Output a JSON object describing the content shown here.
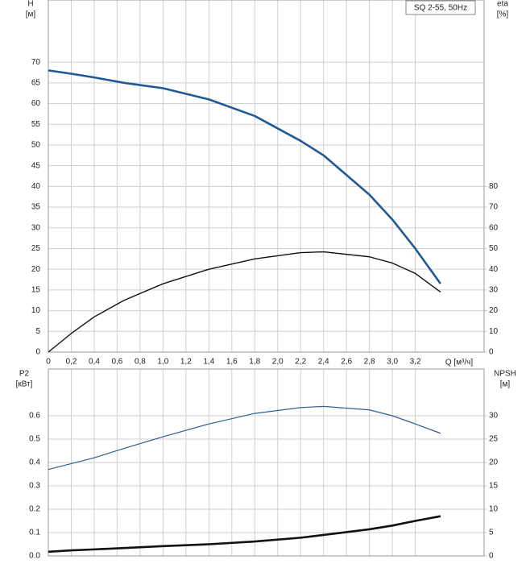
{
  "chart_data": [
    {
      "type": "line",
      "title": "SQ 2-55, 50Hz",
      "xlabel": "Q [м³/ч]",
      "ylabel": [
        "H",
        "[м]"
      ],
      "y2label": [
        "eta",
        "[%]"
      ],
      "x": [
        0,
        0.2,
        0.4,
        0.66,
        1.0,
        1.4,
        1.8,
        2.2,
        2.4,
        2.8,
        3.0,
        3.2,
        3.42
      ],
      "series": [
        {
          "name": "H",
          "color": "#1f5a96",
          "values": [
            68,
            67.2,
            66.3,
            65,
            63.7,
            61,
            57,
            51,
            47.5,
            38,
            32,
            25,
            16.5
          ]
        },
        {
          "name": "eta",
          "color": "#111111",
          "axis": "y2",
          "values": [
            0,
            9,
            17,
            25,
            33,
            40,
            45,
            48,
            48.4,
            46,
            43,
            38,
            29
          ]
        }
      ],
      "xlim": [
        0,
        3.8
      ],
      "xticks": [
        0,
        {
          "value": 0.2,
          "label": "0,2"
        },
        {
          "value": 0.4,
          "label": "0,4"
        },
        {
          "value": 0.6,
          "label": "0,6"
        },
        {
          "value": 0.8,
          "label": "0,8"
        },
        {
          "value": 1.0,
          "label": "1,0"
        },
        {
          "value": 1.2,
          "label": "1,2"
        },
        {
          "value": 1.4,
          "label": "1,4"
        },
        {
          "value": 1.6,
          "label": "1,6"
        },
        {
          "value": 1.8,
          "label": "1,8"
        },
        {
          "value": 2.0,
          "label": "2,0"
        },
        {
          "value": 2.2,
          "label": "2,2"
        },
        {
          "value": 2.4,
          "label": "2,4"
        },
        {
          "value": 2.6,
          "label": "2,6"
        },
        {
          "value": 2.8,
          "label": "2,8"
        },
        {
          "value": 3.0,
          "label": "3,0"
        },
        {
          "value": 3.2,
          "label": "3,2"
        }
      ],
      "ylim": [
        0,
        85
      ],
      "yticks": [
        0,
        5,
        10,
        15,
        20,
        25,
        30,
        35,
        40,
        45,
        50,
        55,
        60,
        65,
        70
      ],
      "y2lim": [
        0,
        170
      ],
      "y2ticks": [
        0,
        10,
        20,
        30,
        40,
        50,
        60,
        70,
        80
      ],
      "grid": true
    },
    {
      "type": "line",
      "ylabel": [
        "P2",
        "[кВт]"
      ],
      "y2label": [
        "NPSH",
        "[м]"
      ],
      "x": [
        0,
        0.2,
        0.4,
        0.66,
        1.0,
        1.4,
        1.8,
        2.2,
        2.4,
        2.8,
        3.0,
        3.2,
        3.42
      ],
      "series": [
        {
          "name": "P2",
          "color": "#2f5f8f",
          "values": [
            0.37,
            0.395,
            0.42,
            0.46,
            0.51,
            0.565,
            0.61,
            0.635,
            0.64,
            0.625,
            0.6,
            0.565,
            0.525
          ]
        },
        {
          "name": "NPSH",
          "color": "#111111",
          "axis": "y2",
          "values": [
            0.9,
            1.2,
            1.4,
            1.7,
            2.1,
            2.5,
            3.1,
            3.9,
            4.5,
            5.7,
            6.5,
            7.5,
            8.5
          ]
        }
      ],
      "xlim": [
        0,
        3.8
      ],
      "ylim": [
        0,
        0.8
      ],
      "yticks": [
        {
          "value": 0,
          "label": "0.0"
        },
        0.1,
        0.2,
        0.3,
        0.4,
        0.5,
        0.6
      ],
      "y2lim": [
        0,
        40
      ],
      "y2ticks": [
        0,
        5,
        10,
        15,
        20,
        25,
        30
      ],
      "grid": true
    }
  ]
}
